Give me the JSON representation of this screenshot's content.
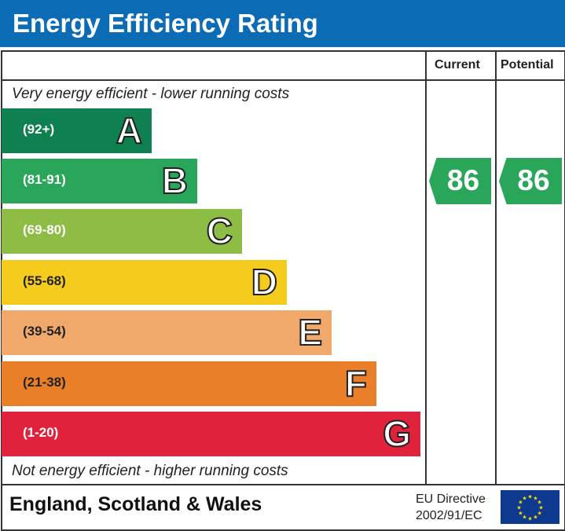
{
  "title": "Energy Efficiency Rating",
  "colors": {
    "header": "#0b6cb5",
    "rating_arrow": "#2aa65a"
  },
  "chart_data": {
    "type": "bar",
    "columns": [
      "Current",
      "Potential"
    ],
    "top_note": "Very energy efficient - lower running costs",
    "bottom_note": "Not energy efficient - higher running costs",
    "bands": [
      {
        "letter": "A",
        "range": "(92+)",
        "color": "#0f8050"
      },
      {
        "letter": "B",
        "range": "(81-91)",
        "color": "#2aa65a"
      },
      {
        "letter": "C",
        "range": "(69-80)",
        "color": "#8dbd45"
      },
      {
        "letter": "D",
        "range": "(55-68)",
        "color": "#f5cb1e"
      },
      {
        "letter": "E",
        "range": "(39-54)",
        "color": "#f0a96b"
      },
      {
        "letter": "F",
        "range": "(21-38)",
        "color": "#ea7f2a"
      },
      {
        "letter": "G",
        "range": "(1-20)",
        "color": "#e0223c"
      }
    ],
    "current": 86,
    "potential": 86
  },
  "footer": {
    "region": "England, Scotland & Wales",
    "directive_line1": "EU Directive",
    "directive_line2": "2002/91/EC",
    "flag": "eu-flag-icon"
  }
}
